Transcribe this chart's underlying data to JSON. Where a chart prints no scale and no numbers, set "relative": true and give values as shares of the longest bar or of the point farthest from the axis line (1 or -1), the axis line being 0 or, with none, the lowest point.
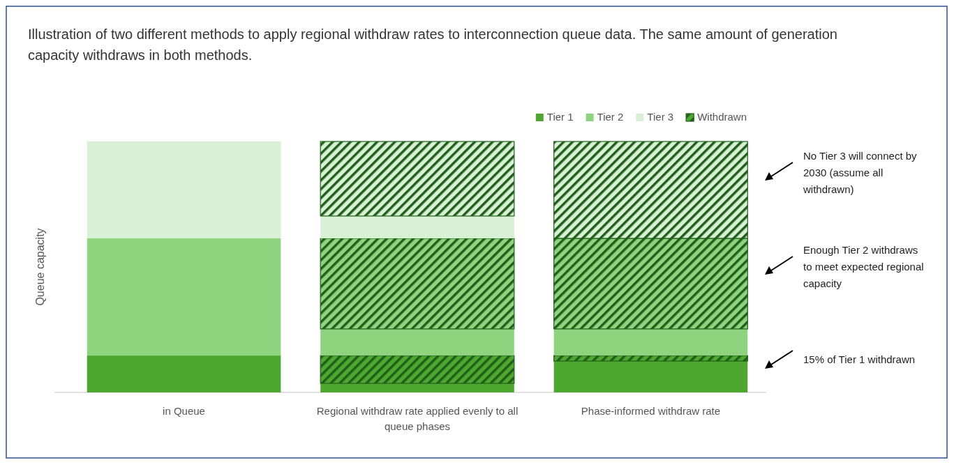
{
  "chart_data": {
    "type": "bar",
    "title": "Illustration of two different methods to apply regional withdraw rates to interconnection queue data. The same amount of generation capacity withdraws in both methods.",
    "ylabel": "Queue capacity",
    "categories": [
      "in Queue",
      "Regional withdraw rate applied evenly to all queue phases",
      "Phase-informed withdraw rate"
    ],
    "stacked": true,
    "relative": true,
    "legend": "top right",
    "series": [
      {
        "name": "Tier 1",
        "color": "#4ea72e",
        "values": [
          0.147,
          0.036,
          0.125
        ]
      },
      {
        "name": "Withdrawn",
        "color": "#1f5f1a",
        "values": [
          0,
          0.111,
          0.022
        ]
      },
      {
        "name": "Tier 2",
        "color": "#8ed47f",
        "values": [
          0.467,
          0.106,
          0.106
        ]
      },
      {
        "color": "#1f5f1a",
        "values": [
          0,
          0.361,
          0.361
        ]
      },
      {
        "name": "Tier 3",
        "color": "#d8f0d3",
        "values": [
          0.386,
          0.089,
          0
        ]
      },
      {
        "color": "#1f5f1a",
        "values": [
          0,
          0.297,
          0.386
        ]
      }
    ],
    "annotations": [
      "No Tier 3 will connect by 2030 (assume all withdrawn)",
      "Enough Tier 2 withdraws to meet expected regional capacity",
      "15% of Tier 1 withdrawn"
    ]
  }
}
